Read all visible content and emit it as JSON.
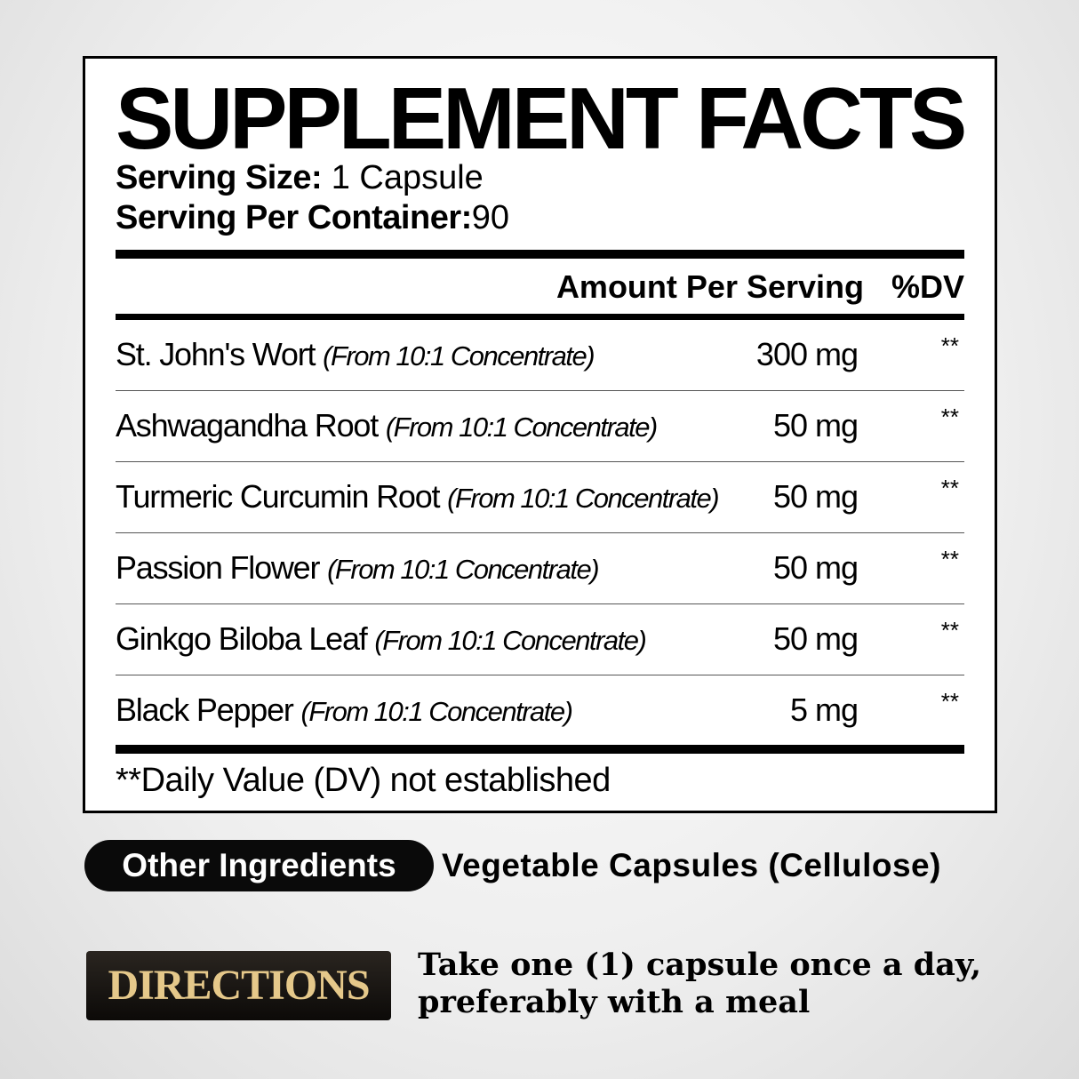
{
  "label": {
    "title": "SUPPLEMENT FACTS",
    "serving_size": {
      "label": "Serving Size:",
      "value": "1 Capsule"
    },
    "servings_per_container": {
      "label": "Serving Per Container:",
      "value": "90"
    },
    "header": {
      "amount": "Amount Per Serving",
      "dv": "%DV"
    },
    "rows": [
      {
        "name": "St. John's Wort",
        "note": "(From 10:1 Concentrate)",
        "amount": "300 mg",
        "dv": "**"
      },
      {
        "name": "Ashwagandha Root",
        "note": "(From 10:1 Concentrate)",
        "amount": "50 mg",
        "dv": "**"
      },
      {
        "name": "Turmeric Curcumin Root",
        "note": "(From 10:1 Concentrate)",
        "amount": "50 mg",
        "dv": "**"
      },
      {
        "name": "Passion Flower",
        "note": "(From 10:1 Concentrate)",
        "amount": "50 mg",
        "dv": "**"
      },
      {
        "name": "Ginkgo Biloba Leaf",
        "note": "(From 10:1 Concentrate)",
        "amount": "50 mg",
        "dv": "**"
      },
      {
        "name": "Black Pepper",
        "note": "(From 10:1 Concentrate)",
        "amount": "5 mg",
        "dv": "**"
      }
    ],
    "footnote": "**Daily Value (DV) not established"
  },
  "other_ingredients": {
    "label": "Other Ingredients",
    "value": "Vegetable Capsules (Cellulose)"
  },
  "directions": {
    "label": "DIRECTIONS",
    "lines": [
      "Take one (1) capsule once a day,",
      "preferably with a meal"
    ]
  }
}
